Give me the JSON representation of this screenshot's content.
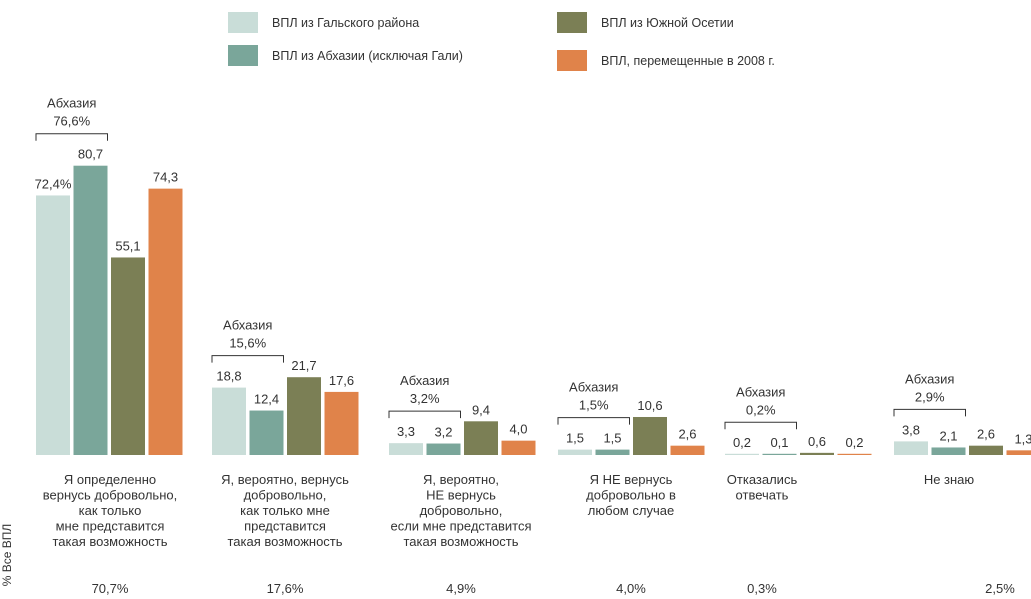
{
  "colors": {
    "gali": "#c9ddd8",
    "abkhazia_excl_gali": "#7aa69a",
    "south_ossetia": "#7b7f55",
    "displaced_2008": "#e0834a"
  },
  "chart_data": {
    "type": "bar",
    "ylabel": "% Все ВПЛ",
    "series": [
      {
        "name": "ВПЛ из Гальского района",
        "color": "#c9ddd8",
        "values": [
          72.4,
          18.8,
          3.3,
          1.5,
          0.2,
          3.8
        ],
        "labels": [
          "72,4%",
          "18,8",
          "3,3",
          "1,5",
          "0,2",
          "3,8"
        ]
      },
      {
        "name": "ВПЛ из Абхазии (исключая Гали)",
        "color": "#7aa69a",
        "values": [
          80.7,
          12.4,
          3.2,
          1.5,
          0.1,
          2.1
        ],
        "labels": [
          "80,7",
          "12,4",
          "3,2",
          "1,5",
          "0,1",
          "2,1"
        ]
      },
      {
        "name": "ВПЛ из Южной Осетии",
        "color": "#7b7f55",
        "values": [
          55.1,
          21.7,
          9.4,
          10.6,
          0.6,
          2.6
        ],
        "labels": [
          "55,1",
          "21,7",
          "9,4",
          "10,6",
          "0,6",
          "2,6"
        ]
      },
      {
        "name": "ВПЛ, перемещенные в 2008 г.",
        "color": "#e0834a",
        "values": [
          74.3,
          17.6,
          4.0,
          2.6,
          0.2,
          1.3
        ],
        "labels": [
          "74,3",
          "17,6",
          "4,0",
          "2,6",
          "0,2",
          "1,3"
        ]
      }
    ],
    "categories": [
      [
        "Я определенно",
        "вернусь добровольно,",
        "как только",
        "мне представится",
        "такая возможность"
      ],
      [
        "Я, вероятно, вернусь",
        "добровольно,",
        "как только мне",
        "представится",
        "такая возможность"
      ],
      [
        "Я, вероятно,",
        "НЕ вернусь",
        "добровольно,",
        "если мне представится",
        "такая возможность"
      ],
      [
        "Я НЕ вернусь",
        "добровольно в",
        "любом случае"
      ],
      [
        "Отказались",
        "отвечать"
      ],
      [
        "Не знаю"
      ]
    ],
    "group_annotations": [
      {
        "label": "Абхазия",
        "value": "76,6%"
      },
      {
        "label": "Абхазия",
        "value": "15,6%"
      },
      {
        "label": "Абхазия",
        "value": "3,2%"
      },
      {
        "label": "Абхазия",
        "value": "1,5%"
      },
      {
        "label": "Абхазия",
        "value": "0,2%"
      },
      {
        "label": "Абхазия",
        "value": "2,9%"
      }
    ],
    "totals": [
      "70,7%",
      "17,6%",
      "4,9%",
      "4,0%",
      "0,3%",
      "2,5%"
    ],
    "legend_position": "top"
  }
}
